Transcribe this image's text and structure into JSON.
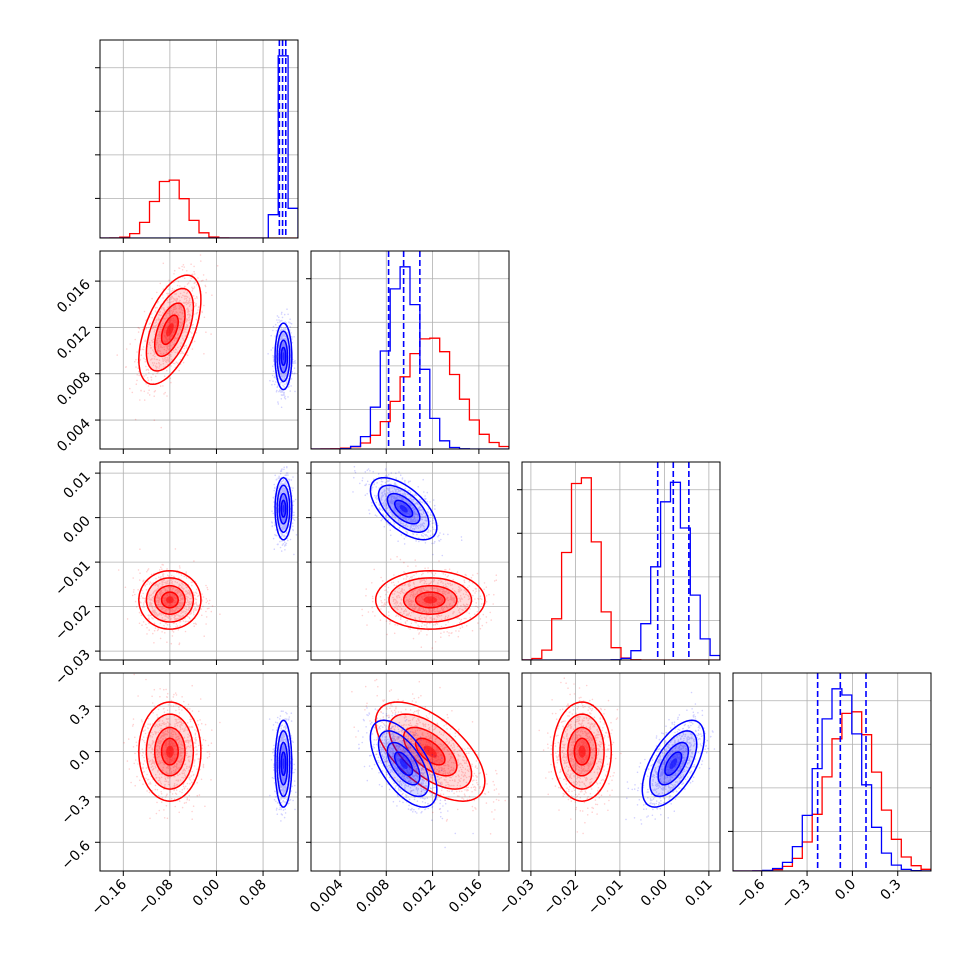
{
  "chart_data": {
    "type": "corner",
    "grid": true,
    "colors": {
      "red": "#ff0000",
      "blue": "#0000ff"
    },
    "parameters": [
      {
        "ticks": [
          -0.16,
          -0.08,
          0.0,
          0.08
        ],
        "tick_labels": [
          "−0.16",
          "−0.08",
          "0.00",
          "0.08"
        ],
        "range": [
          -0.2,
          0.14
        ]
      },
      {
        "ticks": [
          0.004,
          0.008,
          0.012,
          0.016
        ],
        "tick_labels": [
          "0.004",
          "0.008",
          "0.012",
          "0.016"
        ],
        "range": [
          0.0015,
          0.0186
        ]
      },
      {
        "ticks": [
          -0.03,
          -0.02,
          -0.01,
          0.0,
          0.01
        ],
        "tick_labels": [
          "−0.03",
          "−0.02",
          "−0.01",
          "0.00",
          "0.01"
        ],
        "range": [
          -0.032,
          0.0125
        ]
      },
      {
        "ticks": [
          -0.6,
          -0.3,
          0.0,
          0.3
        ],
        "tick_labels": [
          "−0.6",
          "−0.3",
          "0.0",
          "0.3"
        ],
        "range": [
          -0.79,
          0.52
        ]
      }
    ],
    "series": [
      {
        "color": "red",
        "means": [
          -0.08,
          0.0118,
          -0.0185,
          0.0
        ],
        "stds": [
          0.026,
          0.0023,
          0.0032,
          0.16
        ],
        "corr": [
          [
            1,
            0.55,
            0,
            0
          ],
          [
            0.55,
            1,
            0,
            -0.6
          ],
          [
            0,
            0,
            1,
            0
          ],
          [
            0,
            -0.6,
            0,
            1
          ]
        ],
        "quantiles": []
      },
      {
        "color": "blue",
        "means": [
          0.115,
          0.0095,
          0.002,
          -0.08
        ],
        "stds": [
          0.007,
          0.0014,
          0.0034,
          0.14
        ],
        "corr": [
          [
            1,
            0,
            0,
            0
          ],
          [
            0,
            1,
            -0.6,
            -0.6
          ],
          [
            0,
            -0.6,
            1,
            0.6
          ],
          [
            0,
            -0.6,
            0.6,
            1
          ]
        ],
        "quantiles": [
          [
            0.108,
            0.1135,
            0.119
          ],
          [
            0.0082,
            0.0095,
            0.0109
          ],
          [
            -0.0015,
            0.002,
            0.0055
          ],
          [
            -0.23,
            -0.08,
            0.09
          ]
        ]
      }
    ]
  }
}
